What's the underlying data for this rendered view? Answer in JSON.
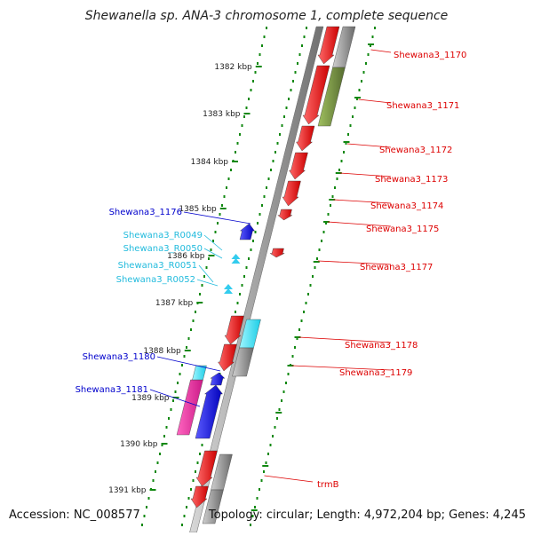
{
  "title": "Shewanella sp. ANA-3 chromosome 1, complete sequence",
  "accession": "Accession: NC_008577",
  "topology": "Topology: circular; Length: 4,972,204 bp; Genes: 4,245",
  "colors": {
    "forward_gene": "#ff0000",
    "reverse_gene": "#0000ff",
    "rna": "#33ccee",
    "backbone": "#888888",
    "tick": "#118811",
    "right_label": "#dd0000",
    "left_label_gene": "#0000cc",
    "left_label_rna": "#22bbdd"
  },
  "scale_labels": [
    "1382 kbp",
    "1383 kbp",
    "1384 kbp",
    "1385 kbp",
    "1386 kbp",
    "1387 kbp",
    "1388 kbp",
    "1389 kbp",
    "1390 kbp",
    "1391 kbp"
  ],
  "right_labels": [
    "Shewana3_1170",
    "Shewana3_1171",
    "Shewana3_1172",
    "Shewana3_1173",
    "Shewana3_1174",
    "Shewana3_1175",
    "Shewana3_1177",
    "Shewana3_1178",
    "Shewana3_1179",
    "trmB"
  ],
  "left_labels": [
    {
      "text": "Shewana3_1176",
      "kind": "gene"
    },
    {
      "text": "Shewana3_R0049",
      "kind": "rna"
    },
    {
      "text": "Shewana3_R0050",
      "kind": "rna"
    },
    {
      "text": "Shewana3_R0051",
      "kind": "rna"
    },
    {
      "text": "Shewana3_R0052",
      "kind": "rna"
    },
    {
      "text": "Shewana3_1180",
      "kind": "gene"
    },
    {
      "text": "Shewana3_1181",
      "kind": "gene"
    }
  ]
}
